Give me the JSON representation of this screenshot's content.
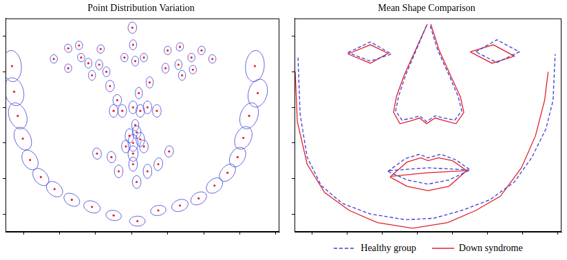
{
  "chart_data": [
    {
      "type": "scatter",
      "title": "Point Distribution Variation",
      "xlim": [
        0,
        380
      ],
      "ylim": [
        0,
        300
      ],
      "xticks": [
        25,
        75,
        125,
        175,
        225,
        275,
        325,
        375
      ],
      "yticks": [
        25,
        75,
        125,
        175,
        225,
        275
      ],
      "tick_labels": false,
      "grid": false,
      "series": [
        {
          "type": "scatter",
          "color": "#e8202a",
          "marker": "circle",
          "x": [
            9,
            12,
            17,
            24,
            34,
            49,
            68,
            92,
            120,
            150,
            183,
            212,
            242,
            268,
            290,
            308,
            322,
            330,
            338,
            350,
            346,
            67,
            87,
            102,
            105,
            87,
            115,
            132,
            130,
            120,
            140,
            176,
            177,
            180,
            165,
            192,
            225,
            242,
            258,
            272,
            287,
            240,
            222,
            245,
            260,
            145,
            155,
            162,
            177,
            187,
            197,
            210,
            150,
            200,
            185,
            172,
            177,
            187,
            182,
            167,
            192,
            177,
            180,
            127,
            147,
            212,
            227,
            177,
            182,
            197,
            157
          ],
          "y": [
            233,
            197,
            163,
            131,
            101,
            77,
            60,
            45,
            35,
            23,
            15,
            30,
            37,
            47,
            65,
            83,
            105,
            132,
            163,
            195,
            233,
            243,
            258,
            262,
            245,
            230,
            237,
            257,
            235,
            220,
            225,
            287,
            263,
            240,
            245,
            245,
            255,
            260,
            245,
            255,
            243,
            235,
            230,
            220,
            228,
            205,
            185,
            170,
            175,
            170,
            175,
            170,
            170,
            210,
            195,
            135,
            125,
            130,
            140,
            120,
            120,
            110,
            150,
            110,
            105,
            95,
            113,
            95,
            70,
            85,
            85
          ]
        },
        {
          "type": "ellipse",
          "color": "#3d3dd8",
          "x": [
            9,
            12,
            17,
            24,
            34,
            49,
            68,
            92,
            120,
            150,
            183,
            212,
            242,
            268,
            290,
            308,
            322,
            330,
            338,
            350,
            346,
            67,
            87,
            102,
            105,
            87,
            115,
            132,
            130,
            120,
            140,
            176,
            177,
            180,
            165,
            192,
            225,
            242,
            258,
            272,
            287,
            240,
            222,
            245,
            260,
            145,
            155,
            162,
            177,
            187,
            197,
            210,
            150,
            200,
            185,
            172,
            177,
            187,
            182,
            167,
            192,
            177,
            180,
            127,
            147,
            212,
            227,
            177,
            182,
            197,
            157
          ],
          "y": [
            233,
            197,
            163,
            131,
            101,
            77,
            60,
            45,
            35,
            23,
            15,
            30,
            37,
            47,
            65,
            83,
            105,
            132,
            163,
            195,
            233,
            243,
            258,
            262,
            245,
            230,
            237,
            257,
            235,
            220,
            225,
            287,
            263,
            240,
            245,
            245,
            255,
            260,
            245,
            255,
            243,
            235,
            230,
            220,
            228,
            205,
            185,
            170,
            175,
            170,
            175,
            170,
            170,
            210,
            195,
            135,
            125,
            130,
            140,
            120,
            120,
            110,
            150,
            110,
            105,
            95,
            113,
            95,
            70,
            85,
            85
          ],
          "rx": [
            13,
            13,
            12,
            11,
            10,
            9,
            9,
            8,
            8,
            7,
            7,
            7,
            8,
            8,
            9,
            9,
            10,
            11,
            12,
            13,
            13,
            5,
            5,
            5,
            5,
            5,
            5,
            5,
            5,
            5,
            5,
            6,
            5,
            5,
            5,
            5,
            5,
            5,
            5,
            5,
            5,
            5,
            5,
            5,
            5,
            6,
            6,
            6,
            6,
            6,
            6,
            6,
            6,
            5,
            5,
            6,
            7,
            6,
            6,
            6,
            6,
            7,
            5,
            6,
            6,
            6,
            6,
            6,
            6,
            6,
            6
          ],
          "ry": [
            22,
            20,
            19,
            17,
            15,
            14,
            13,
            12,
            12,
            11,
            11,
            11,
            12,
            12,
            13,
            14,
            15,
            17,
            19,
            20,
            22,
            6,
            6,
            6,
            6,
            6,
            7,
            6,
            7,
            7,
            7,
            8,
            7,
            7,
            6,
            6,
            6,
            6,
            6,
            6,
            6,
            7,
            7,
            7,
            6,
            8,
            8,
            9,
            9,
            9,
            9,
            9,
            9,
            8,
            8,
            10,
            12,
            10,
            9,
            9,
            9,
            11,
            8,
            8,
            8,
            9,
            8,
            10,
            9,
            10,
            9
          ],
          "angle": [
            5,
            15,
            20,
            25,
            30,
            40,
            50,
            60,
            70,
            80,
            90,
            100,
            110,
            120,
            130,
            140,
            150,
            155,
            160,
            165,
            175,
            0,
            20,
            0,
            10,
            0,
            0,
            -10,
            0,
            0,
            0,
            0,
            0,
            0,
            0,
            0,
            0,
            -20,
            0,
            -10,
            0,
            0,
            0,
            0,
            0,
            0,
            0,
            0,
            0,
            0,
            0,
            0,
            0,
            0,
            0,
            0,
            0,
            0,
            0,
            0,
            0,
            0,
            0,
            10,
            10,
            -10,
            -10,
            0,
            0,
            0,
            0
          ]
        }
      ]
    },
    {
      "type": "line",
      "title": "Mean Shape Comparison",
      "xlim": [
        0,
        380
      ],
      "ylim": [
        0,
        300
      ],
      "xticks": [
        25,
        75,
        125,
        175,
        225,
        275,
        325,
        375
      ],
      "yticks": [
        25,
        75,
        125,
        175,
        225,
        275
      ],
      "tick_labels": false,
      "grid": false,
      "legend": "bottom",
      "series": [
        {
          "name": "Healthy group",
          "color": "#3b3bd6",
          "line_style": "dashed",
          "x": [
            5,
            8,
            18,
            38,
            68,
            108,
            158,
            198,
            238,
            278,
            313,
            338,
            358,
            368,
            371,
            null,
            76,
            108,
            138,
            108,
            76,
            null,
            258,
            288,
            320,
            288,
            258,
            null,
            188,
            173,
            158,
            148,
            144,
            153,
            168,
            178,
            188,
            200,
            213,
            228,
            238,
            233,
            220,
            204,
            193,
            null,
            133,
            158,
            178,
            190,
            208,
            230,
            250,
            220,
            190,
            160,
            133,
            null,
            135,
            190,
            248
          ],
          "y": [
            245,
            165,
            105,
            65,
            40,
            25,
            17,
            19,
            30,
            45,
            70,
            105,
            145,
            185,
            250,
            null,
            252,
            267,
            250,
            240,
            252,
            null,
            253,
            270,
            253,
            238,
            253,
            null,
            290,
            255,
            220,
            190,
            170,
            157,
            160,
            163,
            155,
            163,
            160,
            157,
            170,
            190,
            220,
            255,
            290,
            null,
            85,
            103,
            109,
            104,
            109,
            101,
            87,
            73,
            67,
            73,
            85,
            null,
            86,
            90,
            87
          ]
        },
        {
          "name": "Down syndrome",
          "color": "#e0202a",
          "line_style": "solid",
          "x": [
            1,
            4,
            18,
            43,
            78,
            118,
            168,
            218,
            258,
            293,
            323,
            343,
            356,
            361,
            null,
            76,
            108,
            133,
            108,
            76,
            null,
            250,
            283,
            313,
            281,
            250,
            null,
            189,
            172,
            156,
            145,
            141,
            150,
            166,
            178,
            188,
            200,
            214,
            230,
            241,
            236,
            222,
            206,
            194,
            null,
            136,
            160,
            180,
            190,
            205,
            225,
            245,
            220,
            190,
            160,
            136,
            null,
            137,
            190,
            244
          ],
          "y": [
            225,
            155,
            95,
            55,
            30,
            13,
            5,
            13,
            30,
            50,
            90,
            135,
            185,
            225,
            null,
            250,
            263,
            251,
            237,
            250,
            null,
            253,
            263,
            247,
            237,
            253,
            null,
            292,
            255,
            220,
            190,
            168,
            152,
            156,
            160,
            152,
            160,
            156,
            152,
            168,
            190,
            220,
            255,
            292,
            null,
            77,
            98,
            104,
            100,
            104,
            100,
            86,
            64,
            58,
            64,
            77,
            null,
            78,
            83,
            86
          ]
        }
      ]
    }
  ]
}
